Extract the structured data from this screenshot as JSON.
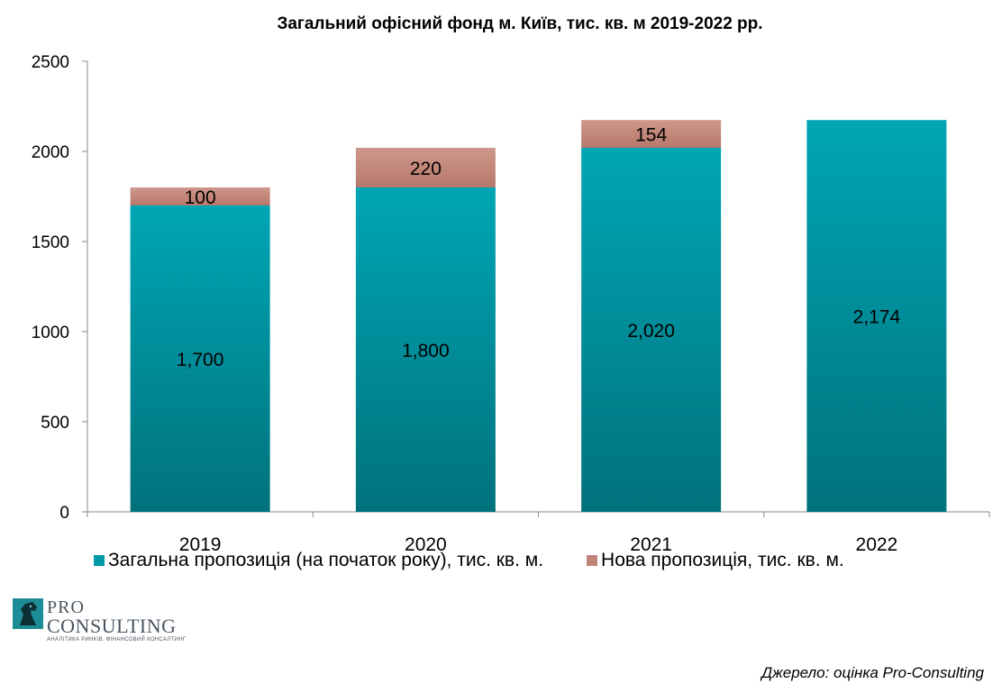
{
  "chart_data": {
    "type": "bar",
    "stacked": true,
    "title": "Загальний офісний фонд м. Київ, тис. кв. м 2019-2022 рр.",
    "categories": [
      "2019",
      "2020",
      "2021",
      "2022"
    ],
    "series": [
      {
        "name": "Загальна пропозиція (на початок року), тис. кв. м.",
        "values": [
          1700,
          1800,
          2020,
          2174
        ],
        "labels": [
          "1,700",
          "1,800",
          "2,020",
          "2,174"
        ],
        "color": "#009aa8"
      },
      {
        "name": "Нова пропозиція, тис. кв. м.",
        "values": [
          100,
          220,
          154,
          null
        ],
        "labels": [
          "100",
          "220",
          "154",
          ""
        ],
        "color": "#c0857a"
      }
    ],
    "ylim": [
      0,
      2500
    ],
    "yticks": [
      0,
      500,
      1000,
      1500,
      2000,
      2500
    ],
    "grid": false,
    "legend": "bottom"
  },
  "logo": {
    "line1": "PRO",
    "line2": "CONSULTING",
    "tagline": "АНАЛІТИКА РИНКІВ. ФІНАНСОВИЙ КОНСАЛТИНГ"
  },
  "source": "Джерело: оцінка Pro-Consulting"
}
